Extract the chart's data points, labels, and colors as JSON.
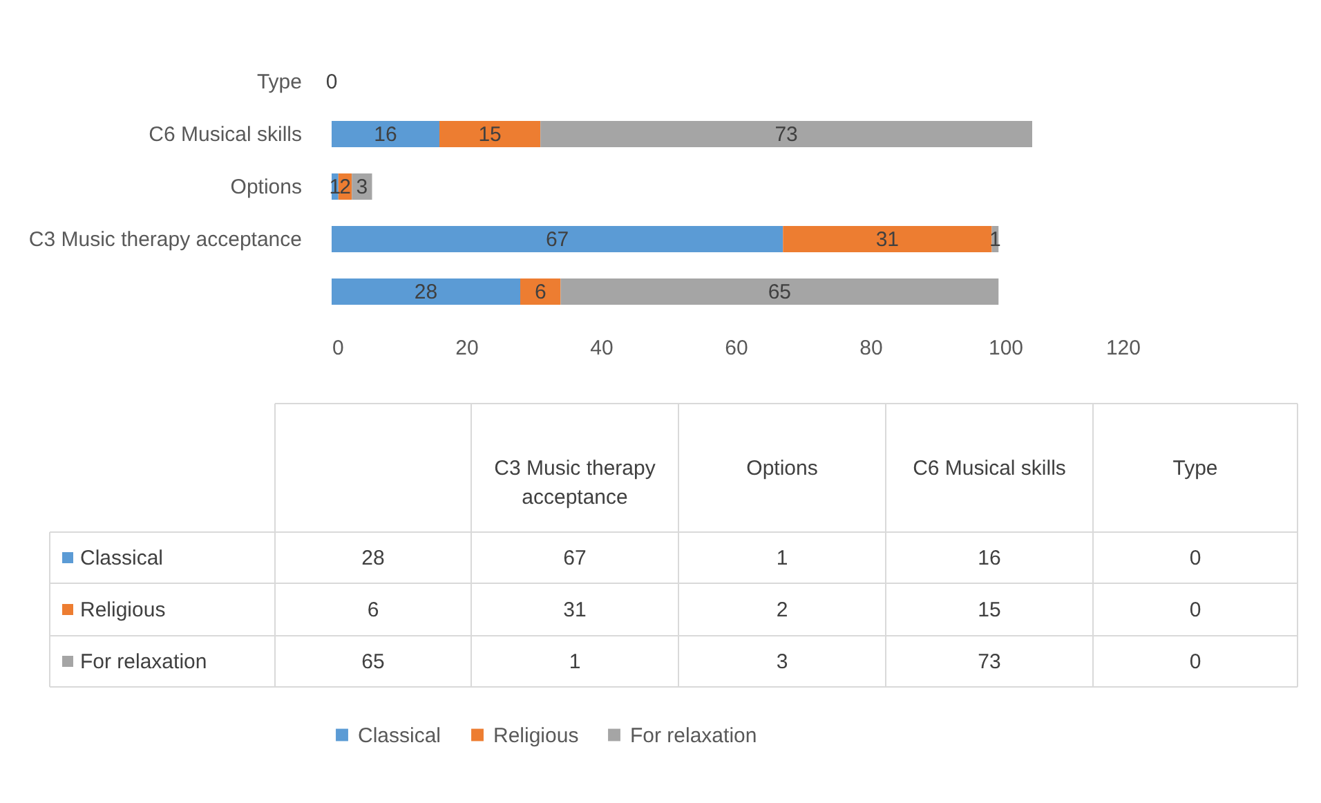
{
  "chart_data": {
    "type": "bar",
    "orientation": "horizontal",
    "stacked": true,
    "grid": false,
    "legend": "bottom",
    "categories": [
      "Type",
      "C6 Musical skills",
      "Options",
      "C3 Music therapy acceptance",
      null
    ],
    "series": [
      {
        "name": "Classical",
        "color": "#5b9bd5",
        "values": [
          0,
          16,
          1,
          67,
          28
        ],
        "value_labels": [
          "0",
          "16",
          "1",
          "67",
          "28"
        ]
      },
      {
        "name": "Religious",
        "color": "#ed7d31",
        "values": [
          0,
          15,
          2,
          31,
          6
        ],
        "value_labels": [
          null,
          "15",
          "2",
          "31",
          "6"
        ]
      },
      {
        "name": "For relaxation",
        "color": "#a5a5a5",
        "values": [
          0,
          73,
          3,
          1,
          65
        ],
        "value_labels": [
          null,
          "73",
          "3",
          "1",
          "65"
        ]
      }
    ],
    "annotations": [
      "28",
      "67",
      "1",
      "16",
      "0",
      "6",
      "31",
      "2",
      "15",
      "0",
      "65",
      "1",
      "3",
      "73",
      "0"
    ],
    "xlim": [
      0,
      120
    ],
    "xticks": [
      0,
      20,
      40,
      60,
      80,
      100,
      120
    ]
  }
}
